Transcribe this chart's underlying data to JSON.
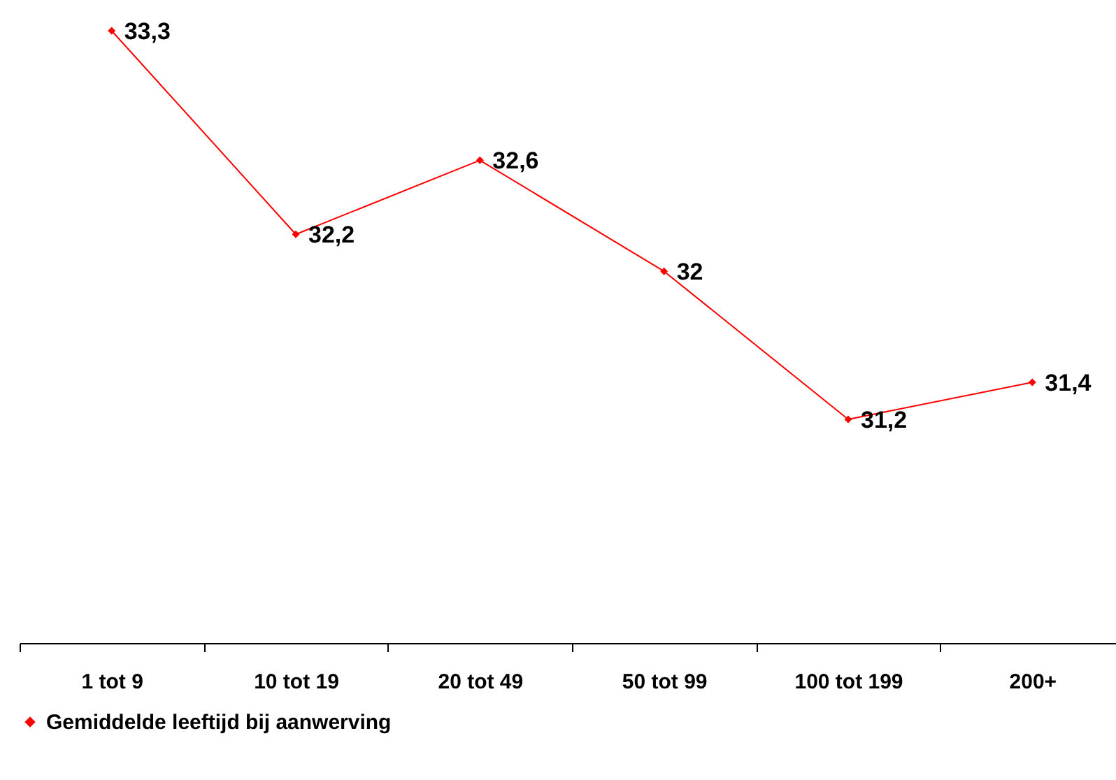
{
  "chart_data": {
    "type": "line",
    "categories": [
      "1 tot 9",
      "10 tot 19",
      "20 tot 49",
      "50 tot 99",
      "100 tot 199",
      "200+"
    ],
    "series": [
      {
        "name": "Gemiddelde leeftijd bij aanwerving",
        "color": "#ff0000",
        "values": [
          33.3,
          32.2,
          32.6,
          32,
          31.2,
          31.4
        ],
        "value_labels": [
          "33,3",
          "32,2",
          "32,6",
          "32",
          "31,2",
          "31,4"
        ]
      }
    ],
    "legend": "bottom",
    "marker": "diamond",
    "tick_labels": "x"
  }
}
